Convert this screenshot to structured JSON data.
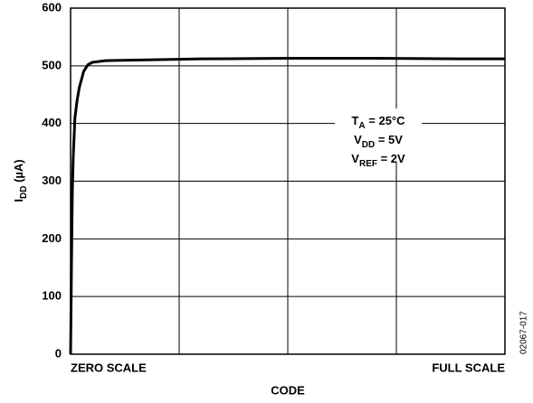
{
  "chart_data": {
    "type": "line",
    "x_label": "CODE",
    "y_label": {
      "main": "I",
      "sub": "DD",
      "rest": " (µA)"
    },
    "x": [
      0,
      0.002,
      0.004,
      0.006,
      0.01,
      0.015,
      0.02,
      0.03,
      0.04,
      0.05,
      0.08,
      0.15,
      0.3,
      0.5,
      0.7,
      0.9,
      1
    ],
    "series": [
      {
        "color": "#000000",
        "values": [
          0,
          150,
          280,
          340,
          410,
          440,
          462,
          490,
          502,
          506,
          509,
          510,
          512,
          513,
          513,
          512,
          512
        ]
      }
    ],
    "xlim": [
      0,
      1
    ],
    "xticks": [
      {
        "value": 0,
        "label": "ZERO SCALE"
      },
      {
        "value": 0.25,
        "label": null
      },
      {
        "value": 0.5,
        "label": null
      },
      {
        "value": 0.75,
        "label": null
      },
      {
        "value": 1,
        "label": "FULL SCALE"
      }
    ],
    "ylim": [
      0,
      600
    ],
    "yticks": [
      0,
      100,
      200,
      300,
      400,
      500,
      600
    ],
    "grid": true,
    "annotations": [
      {
        "main": "T",
        "sub": "A",
        "rest": " = 25°C"
      },
      {
        "main": "V",
        "sub": "DD",
        "rest": " = 5V"
      },
      {
        "main": "V",
        "sub": "REF",
        "rest": " = 2V"
      }
    ],
    "figure_code": "02067-017"
  }
}
